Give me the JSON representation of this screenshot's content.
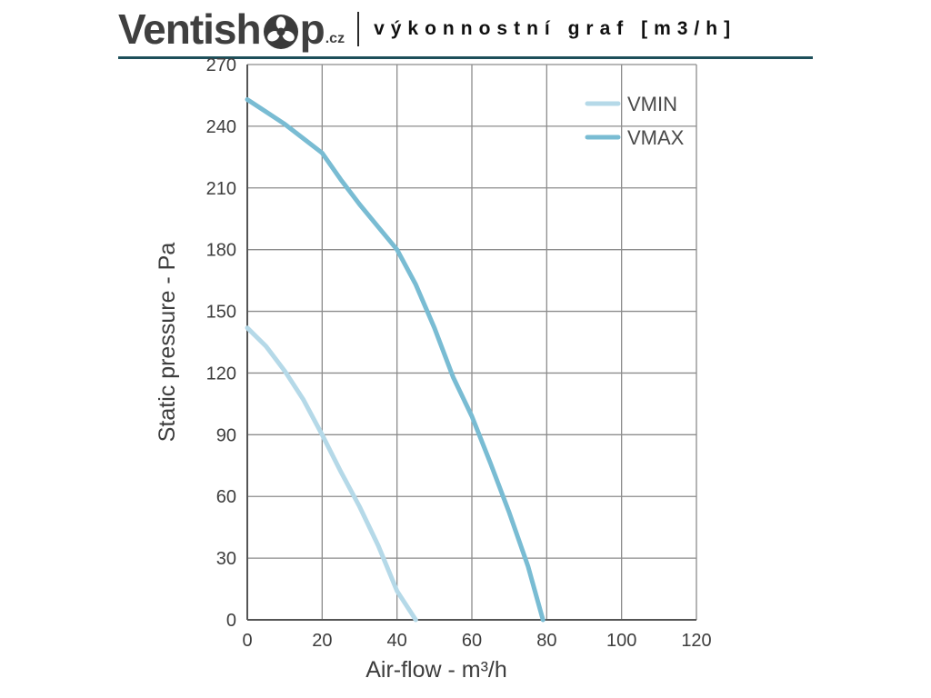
{
  "header": {
    "logo": {
      "prefix": "Ventish",
      "suffix": "p",
      "tld": ".cz"
    },
    "title": "výkonnostní graf [m3/h]"
  },
  "colors": {
    "header_rule": "#1d4f5a",
    "logo_text": "#3f3f3f",
    "vmin": "#b5d9e8",
    "vmax": "#79bcd3"
  },
  "chart_data": {
    "type": "line",
    "title": "",
    "xlabel": "Air-flow - m³/h",
    "ylabel": "Static pressure - Pa",
    "xlim": [
      0,
      120
    ],
    "ylim": [
      0,
      270
    ],
    "xticks": [
      0,
      20,
      40,
      60,
      80,
      100,
      120
    ],
    "yticks": [
      0,
      30,
      60,
      90,
      120,
      150,
      180,
      210,
      240,
      270
    ],
    "grid": true,
    "grid_color": "#8c8c8c",
    "legend_position": "top-right",
    "series": [
      {
        "name": "VMIN",
        "color": "#b5d9e8",
        "points": [
          [
            0,
            142
          ],
          [
            5,
            133
          ],
          [
            10,
            121
          ],
          [
            15,
            107
          ],
          [
            20,
            90
          ],
          [
            25,
            72
          ],
          [
            30,
            55
          ],
          [
            35,
            36
          ],
          [
            40,
            14
          ],
          [
            45,
            0
          ]
        ]
      },
      {
        "name": "VMAX",
        "color": "#79bcd3",
        "points": [
          [
            0,
            253
          ],
          [
            5,
            247
          ],
          [
            10,
            241
          ],
          [
            15,
            234
          ],
          [
            20,
            227
          ],
          [
            25,
            214
          ],
          [
            30,
            202
          ],
          [
            35,
            191
          ],
          [
            40,
            180
          ],
          [
            45,
            163
          ],
          [
            50,
            142
          ],
          [
            55,
            118
          ],
          [
            60,
            99
          ],
          [
            65,
            76
          ],
          [
            70,
            52
          ],
          [
            75,
            26
          ],
          [
            79,
            0
          ]
        ]
      }
    ]
  }
}
